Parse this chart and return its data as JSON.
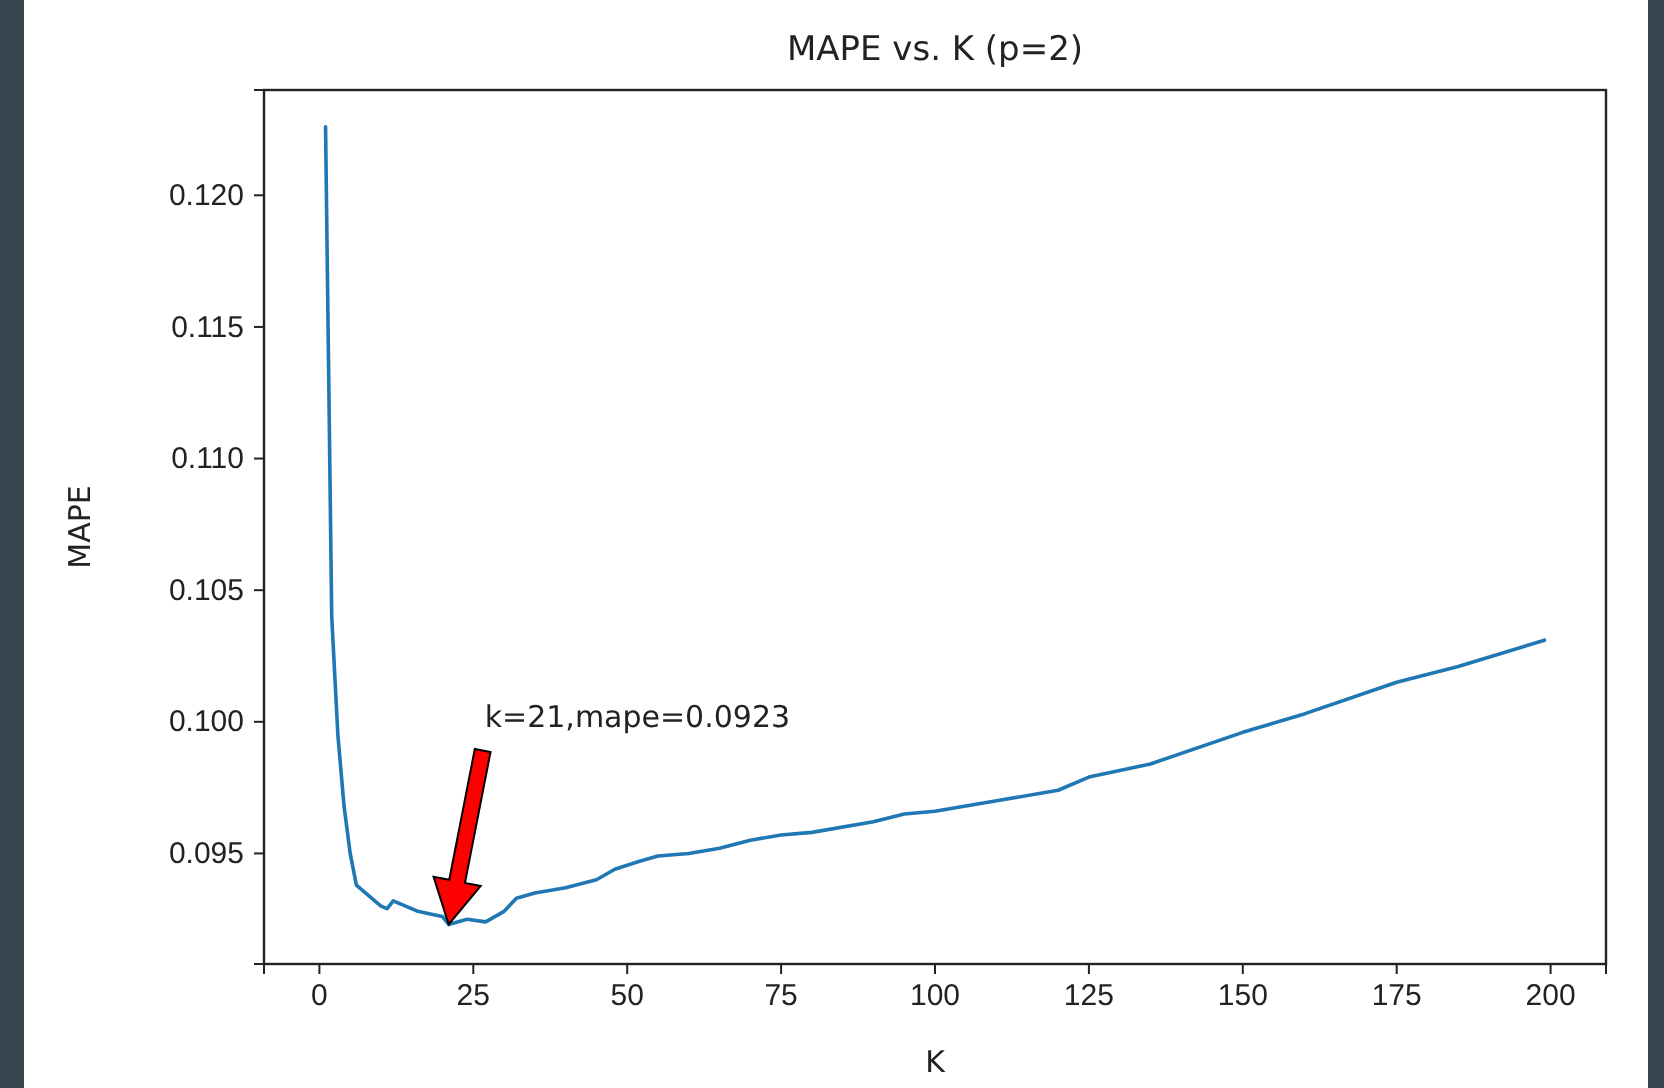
{
  "chart_data": {
    "type": "line",
    "title": "MAPE vs. K (p=2)",
    "xlabel": "K",
    "ylabel": "MAPE",
    "x": [
      1,
      2,
      3,
      4,
      5,
      6,
      8,
      10,
      11,
      12,
      14,
      16,
      18,
      20,
      21,
      24,
      27,
      30,
      32,
      35,
      40,
      45,
      48,
      52,
      55,
      60,
      65,
      70,
      75,
      80,
      90,
      95,
      100,
      105,
      110,
      120,
      125,
      135,
      150,
      160,
      175,
      185,
      199
    ],
    "series": [
      {
        "color": "#1f77b4",
        "values": [
          0.1226,
          0.104,
          0.0995,
          0.0968,
          0.095,
          0.0938,
          0.0934,
          0.093,
          0.0929,
          0.0932,
          0.093,
          0.0928,
          0.0927,
          0.0926,
          0.0923,
          0.0925,
          0.0924,
          0.0928,
          0.0933,
          0.0935,
          0.0937,
          0.094,
          0.0944,
          0.0947,
          0.0949,
          0.095,
          0.0952,
          0.0955,
          0.0957,
          0.0958,
          0.0962,
          0.0965,
          0.0966,
          0.0968,
          0.097,
          0.0974,
          0.0979,
          0.0984,
          0.0996,
          0.1003,
          0.1015,
          0.1021,
          0.1031
        ]
      }
    ],
    "xlim": [
      -9,
      209
    ],
    "xticks": [
      0,
      25,
      50,
      75,
      100,
      125,
      150,
      175,
      200
    ],
    "ylim": [
      0.0908,
      0.124
    ],
    "yticks": [
      {
        "value": 0.095,
        "label": "0.095"
      },
      {
        "value": 0.1,
        "label": "0.100"
      },
      {
        "value": 0.105,
        "label": "0.105"
      },
      {
        "value": 0.11,
        "label": "0.110"
      },
      {
        "value": 0.115,
        "label": "0.115"
      },
      {
        "value": 0.12,
        "label": "0.120"
      }
    ],
    "annotations": [
      "k=21,mape=0.0923"
    ]
  }
}
